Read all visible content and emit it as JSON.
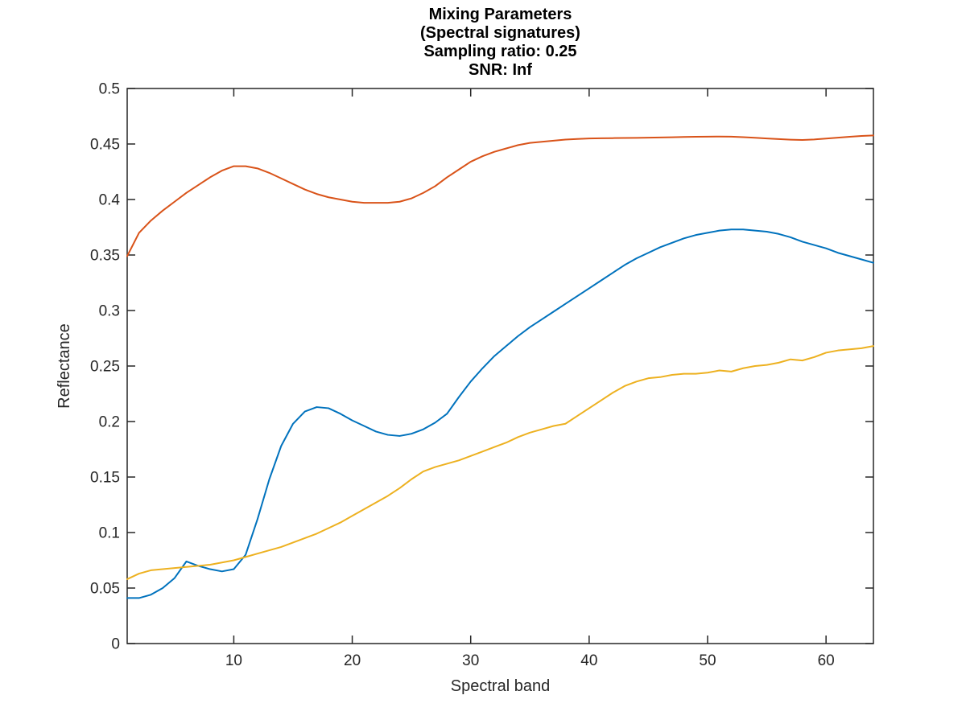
{
  "figure": {
    "background": "#ffffff",
    "axis_color": "#262626"
  },
  "chart_data": {
    "type": "line",
    "title_lines": [
      "Mixing Parameters",
      "(Spectral signatures)",
      "Sampling ratio: 0.25",
      "SNR: Inf"
    ],
    "xlabel": "Spectral band",
    "ylabel": "Reflectance",
    "xlim": [
      1,
      64
    ],
    "ylim": [
      0,
      0.5
    ],
    "x_unit": "band index 1..64",
    "grid": false,
    "legend": "none",
    "xticks": [
      {
        "v": 10,
        "label": "10"
      },
      {
        "v": 20,
        "label": "20"
      },
      {
        "v": 30,
        "label": "30"
      },
      {
        "v": 40,
        "label": "40"
      },
      {
        "v": 50,
        "label": "50"
      },
      {
        "v": 60,
        "label": "60"
      }
    ],
    "yticks": [
      {
        "v": 0.0,
        "label": "0"
      },
      {
        "v": 0.05,
        "label": "0.05"
      },
      {
        "v": 0.1,
        "label": "0.1"
      },
      {
        "v": 0.15,
        "label": "0.15"
      },
      {
        "v": 0.2,
        "label": "0.2"
      },
      {
        "v": 0.25,
        "label": "0.25"
      },
      {
        "v": 0.3,
        "label": "0.3"
      },
      {
        "v": 0.35,
        "label": "0.35"
      },
      {
        "v": 0.4,
        "label": "0.4"
      },
      {
        "v": 0.45,
        "label": "0.45"
      },
      {
        "v": 0.5,
        "label": "0.5"
      }
    ],
    "series": [
      {
        "name": "signature-red",
        "color": "#D95319",
        "values": [
          0.349,
          0.37,
          0.381,
          0.39,
          0.398,
          0.406,
          0.413,
          0.42,
          0.426,
          0.43,
          0.43,
          0.428,
          0.424,
          0.419,
          0.414,
          0.409,
          0.405,
          0.402,
          0.4,
          0.398,
          0.397,
          0.397,
          0.397,
          0.398,
          0.401,
          0.406,
          0.412,
          0.42,
          0.427,
          0.434,
          0.439,
          0.443,
          0.446,
          0.449,
          0.451,
          0.452,
          0.453,
          0.454,
          0.4545,
          0.455,
          0.4552,
          0.4553,
          0.4554,
          0.4555,
          0.4557,
          0.4559,
          0.4561,
          0.4563,
          0.4565,
          0.4566,
          0.4567,
          0.4566,
          0.4562,
          0.4556,
          0.455,
          0.4544,
          0.4539,
          0.4536,
          0.4541,
          0.4549,
          0.4557,
          0.4565,
          0.4572,
          0.4577
        ]
      },
      {
        "name": "signature-blue",
        "color": "#0072BD",
        "values": [
          0.041,
          0.041,
          0.044,
          0.05,
          0.059,
          0.074,
          0.07,
          0.067,
          0.065,
          0.067,
          0.08,
          0.112,
          0.148,
          0.178,
          0.198,
          0.209,
          0.213,
          0.212,
          0.207,
          0.201,
          0.196,
          0.191,
          0.188,
          0.187,
          0.189,
          0.193,
          0.199,
          0.207,
          0.222,
          0.236,
          0.248,
          0.259,
          0.268,
          0.277,
          0.285,
          0.292,
          0.299,
          0.306,
          0.313,
          0.32,
          0.327,
          0.334,
          0.341,
          0.347,
          0.352,
          0.357,
          0.361,
          0.365,
          0.368,
          0.37,
          0.372,
          0.373,
          0.373,
          0.372,
          0.371,
          0.369,
          0.366,
          0.362,
          0.359,
          0.356,
          0.352,
          0.349,
          0.346,
          0.343
        ]
      },
      {
        "name": "signature-yellow",
        "color": "#EDB120",
        "values": [
          0.058,
          0.063,
          0.066,
          0.067,
          0.068,
          0.069,
          0.07,
          0.071,
          0.073,
          0.075,
          0.078,
          0.081,
          0.084,
          0.087,
          0.091,
          0.095,
          0.099,
          0.104,
          0.109,
          0.115,
          0.121,
          0.127,
          0.133,
          0.14,
          0.148,
          0.155,
          0.159,
          0.162,
          0.165,
          0.169,
          0.173,
          0.177,
          0.181,
          0.186,
          0.19,
          0.193,
          0.196,
          0.198,
          0.205,
          0.212,
          0.219,
          0.226,
          0.232,
          0.236,
          0.239,
          0.24,
          0.242,
          0.243,
          0.243,
          0.244,
          0.246,
          0.245,
          0.248,
          0.25,
          0.251,
          0.253,
          0.256,
          0.255,
          0.258,
          0.262,
          0.264,
          0.265,
          0.266,
          0.268
        ]
      }
    ]
  }
}
